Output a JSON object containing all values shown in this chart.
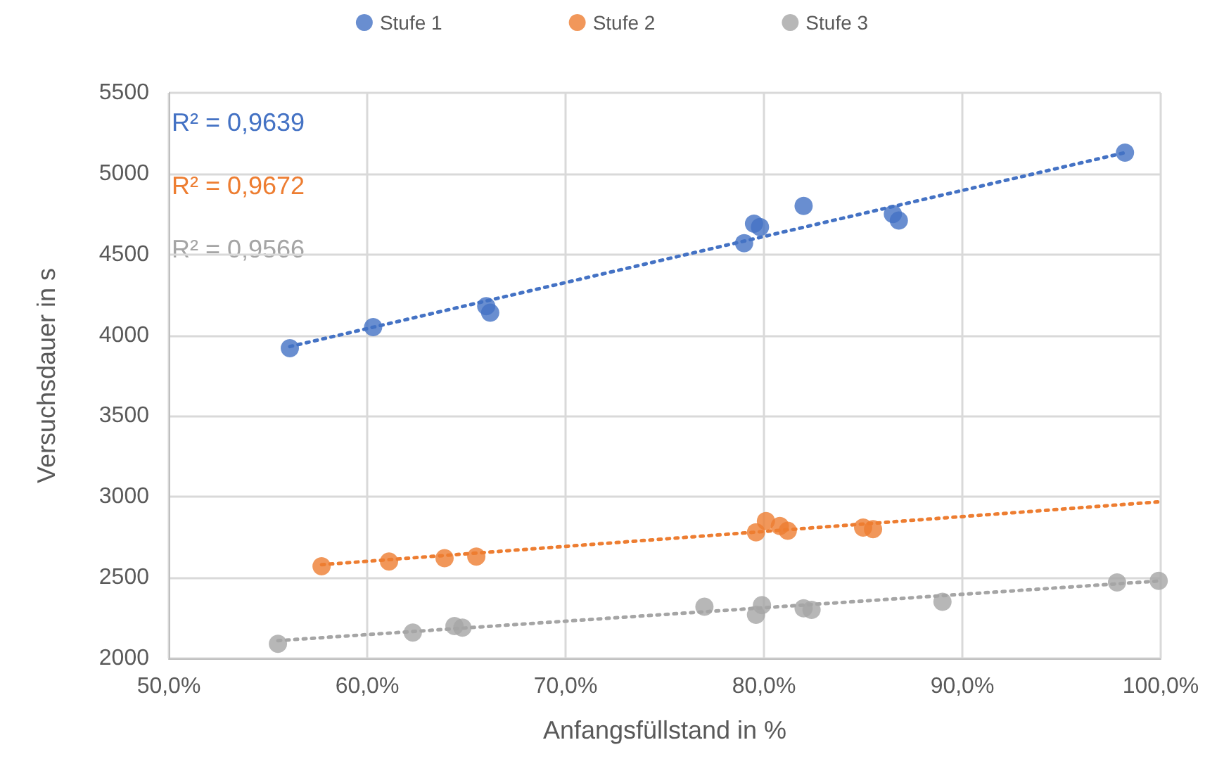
{
  "chart_data": {
    "type": "scatter",
    "xlabel": "Anfangsfüllstand in %",
    "ylabel": "Versuchsdauer in s",
    "xlim": [
      50,
      100
    ],
    "xticks": [
      {
        "value": 50,
        "label": "50,0%"
      },
      {
        "value": 60,
        "label": "60,0%"
      },
      {
        "value": 70,
        "label": "70,0%"
      },
      {
        "value": 80,
        "label": "80,0%"
      },
      {
        "value": 90,
        "label": "90,0%"
      },
      {
        "value": 100,
        "label": "100,0%"
      }
    ],
    "ylim": [
      2000,
      5500
    ],
    "yticks": [
      2000,
      2500,
      3000,
      3500,
      4000,
      4500,
      5000,
      5500
    ],
    "grid": true,
    "legend": "top",
    "marker": "circle",
    "annotations": [
      "R² = 0,9639",
      "R² = 0,9672",
      "R² = 0,9566"
    ],
    "series": [
      {
        "name": "Stufe 1",
        "color": "#4472c4",
        "x": [
          56.1,
          60.3,
          66.0,
          66.2,
          79.0,
          79.5,
          79.8,
          82.0,
          86.5,
          86.8,
          98.2
        ],
        "values": [
          3920,
          4050,
          4180,
          4140,
          4570,
          4690,
          4670,
          4800,
          4750,
          4710,
          5130
        ]
      },
      {
        "name": "Stufe 2",
        "color": "#ed7d31",
        "x": [
          57.7,
          61.1,
          63.9,
          65.5,
          79.6,
          80.1,
          80.8,
          81.2,
          85.0,
          85.5
        ],
        "values": [
          2570,
          2600,
          2620,
          2630,
          2780,
          2850,
          2820,
          2790,
          2810,
          2800
        ]
      },
      {
        "name": "Stufe 3",
        "color": "#a5a5a5",
        "x": [
          55.5,
          62.3,
          64.4,
          64.8,
          77.0,
          79.9,
          79.6,
          82.0,
          82.4,
          89.0,
          97.8,
          99.9
        ],
        "values": [
          2090,
          2160,
          2200,
          2190,
          2320,
          2330,
          2270,
          2310,
          2300,
          2350,
          2470,
          2480
        ]
      },
      {
        "type": "line",
        "color": "#4472c4",
        "line_style": "dotted",
        "marker": "none",
        "x": [
          56.1,
          98.2
        ],
        "values": [
          3930,
          5130
        ]
      },
      {
        "type": "line",
        "color": "#ed7d31",
        "line_style": "dotted",
        "marker": "none",
        "x": [
          57.7,
          100
        ],
        "values": [
          2580,
          2970
        ]
      },
      {
        "type": "line",
        "color": "#a5a5a5",
        "line_style": "dotted",
        "marker": "none",
        "x": [
          55.5,
          100
        ],
        "values": [
          2110,
          2480
        ]
      }
    ]
  }
}
